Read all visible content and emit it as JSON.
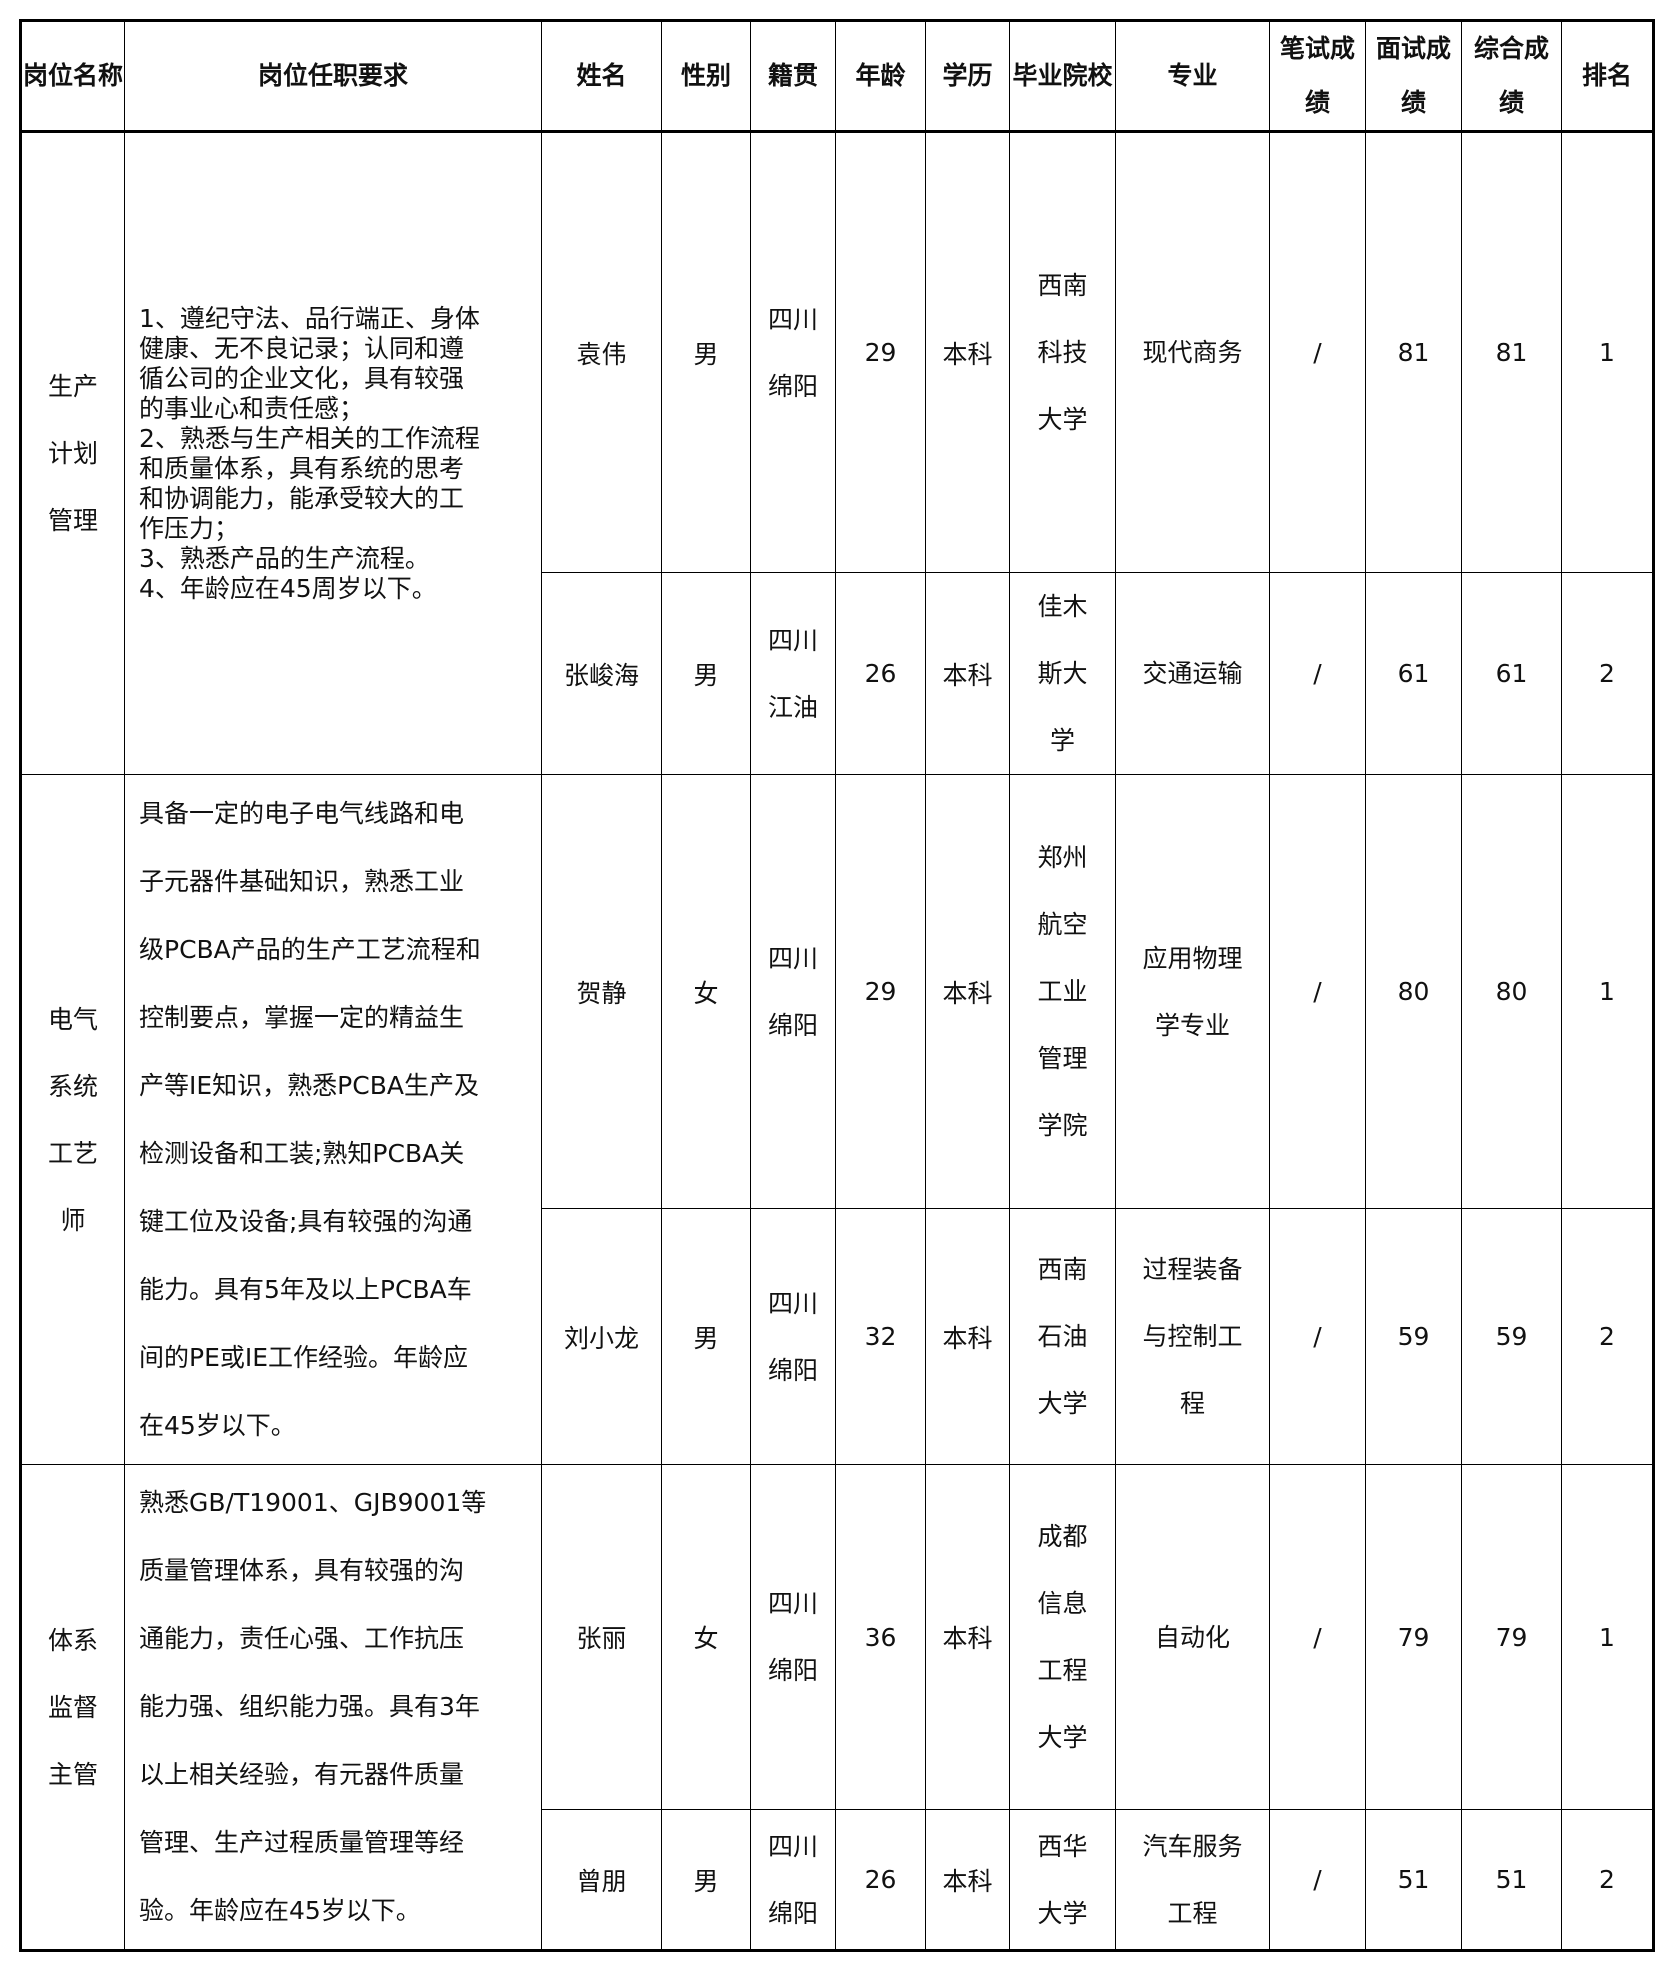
{
  "headers": [
    [
      "岗位",
      "名称"
    ],
    [
      "岗位任职要求"
    ],
    [
      "姓名"
    ],
    [
      "性别"
    ],
    [
      "籍贯"
    ],
    [
      "年龄"
    ],
    [
      "学",
      "历"
    ],
    [
      "毕业",
      "院校"
    ],
    [
      "专业"
    ],
    [
      "笔试",
      "成绩"
    ],
    [
      "面试",
      "成绩"
    ],
    [
      "综合",
      "成绩"
    ],
    [
      "排名"
    ]
  ],
  "groups": [
    {
      "position": [
        "生产",
        "计划",
        "管理"
      ],
      "requirements": [
        "1、遵纪守法、品行端正、身体",
        "健康、无不良记录；认同和遵",
        "循公司的企业文化，具有较强",
        "的事业心和责任感；",
        "2、熟悉与生产相关的工作流程",
        "和质量体系，具有系统的思考",
        "和协调能力，能承受较大的工",
        "作压力；",
        "3、熟悉产品的生产流程。",
        "4、年龄应在45周岁以下。"
      ],
      "candidates": [
        {
          "name": "袁伟",
          "gender": "男",
          "origin": [
            "四川",
            "绵阳"
          ],
          "age": "29",
          "education": "本科",
          "school": [
            "西南",
            "科技",
            "大学"
          ],
          "major": [
            "现代商务"
          ],
          "written": "/",
          "interview": "81",
          "total": "81",
          "rank": "1"
        },
        {
          "name": "张峻海",
          "gender": "男",
          "origin": [
            "四川",
            "江油"
          ],
          "age": "26",
          "education": "本科",
          "school": [
            "佳木",
            "斯大",
            "学"
          ],
          "major": [
            "交通运输"
          ],
          "written": "/",
          "interview": "61",
          "total": "61",
          "rank": "2"
        }
      ]
    },
    {
      "position": [
        "电气",
        "系统",
        "工艺",
        "师"
      ],
      "requirements": [
        "具备一定的电子电气线路和电",
        "子元器件基础知识，熟悉工业",
        "级PCBA产品的生产工艺流程和",
        "控制要点，掌握一定的精益生",
        "产等IE知识，熟悉PCBA生产及",
        "检测设备和工装;熟知PCBA关",
        "键工位及设备;具有较强的沟通",
        "能力。具有5年及以上PCBA车",
        "间的PE或IE工作经验。年龄应",
        "在45岁以下。"
      ],
      "candidates": [
        {
          "name": "贺静",
          "gender": "女",
          "origin": [
            "四川",
            "绵阳"
          ],
          "age": "29",
          "education": "本科",
          "school": [
            "郑州",
            "航空",
            "工业",
            "管理",
            "学院"
          ],
          "major": [
            "应用物理",
            "学专业"
          ],
          "written": "/",
          "interview": "80",
          "total": "80",
          "rank": "1"
        },
        {
          "name": "刘小龙",
          "gender": "男",
          "origin": [
            "四川",
            "绵阳"
          ],
          "age": "32",
          "education": "本科",
          "school": [
            "西南",
            "石油",
            "大学"
          ],
          "major": [
            "过程装备",
            "与控制工",
            "程"
          ],
          "written": "/",
          "interview": "59",
          "total": "59",
          "rank": "2"
        }
      ]
    },
    {
      "position": [
        "体系",
        "监督",
        "主管"
      ],
      "requirements": [
        "熟悉GB/T19001、GJB9001等",
        "质量管理体系，具有较强的沟",
        "通能力，责任心强、工作抗压",
        "能力强、组织能力强。具有3年",
        "以上相关经验，有元器件质量",
        "管理、生产过程质量管理等经",
        "验。年龄应在45岁以下。"
      ],
      "candidates": [
        {
          "name": "张丽",
          "gender": "女",
          "origin": [
            "四川",
            "绵阳"
          ],
          "age": "36",
          "education": "本科",
          "school": [
            "成都",
            "信息",
            "工程",
            "大学"
          ],
          "major": [
            "自动化"
          ],
          "written": "/",
          "interview": "79",
          "total": "79",
          "rank": "1"
        },
        {
          "name": "曾朋",
          "gender": "男",
          "origin": [
            "四川",
            "绵阳"
          ],
          "age": "26",
          "education": "本科",
          "school": [
            "西华",
            "大学"
          ],
          "major": [
            "汽车服务",
            "工程"
          ],
          "written": "/",
          "interview": "51",
          "total": "51",
          "rank": "2"
        }
      ]
    }
  ]
}
